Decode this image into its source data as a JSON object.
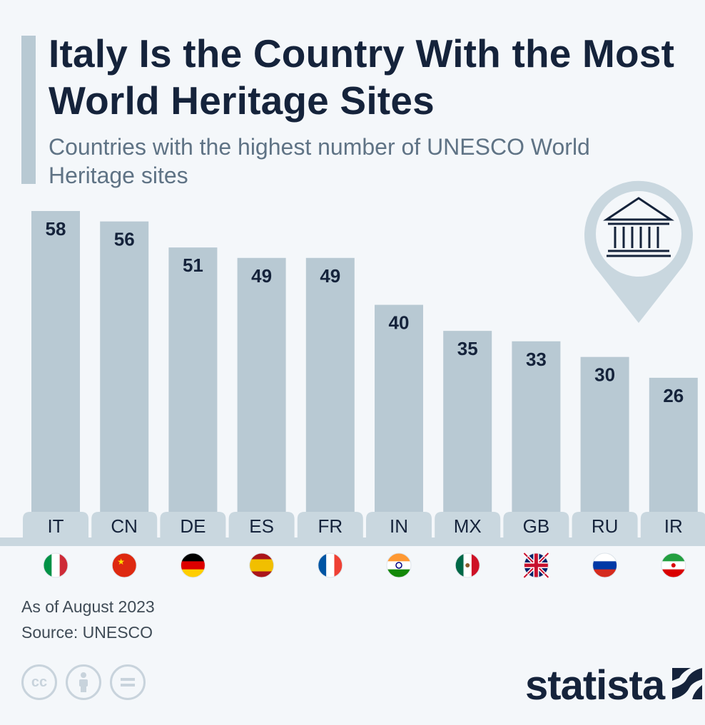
{
  "title": "Italy Is the Country With the Most World Heritage Sites",
  "subtitle": "Countries with the highest number of UNESCO World Heritage sites",
  "note": "As of August 2023",
  "source": "Source: UNESCO",
  "brand": "statista",
  "license_icons": [
    "cc-icon",
    "attribution-icon",
    "no-derivatives-icon"
  ],
  "colors": {
    "bar": "#b8c9d3",
    "label_bg": "#c9d7df",
    "text": "#15233b",
    "baseline": "#c9d7df"
  },
  "chart_data": {
    "type": "bar",
    "categories": [
      "IT",
      "CN",
      "DE",
      "ES",
      "FR",
      "IN",
      "MX",
      "GB",
      "RU",
      "IR"
    ],
    "values": [
      58,
      56,
      51,
      49,
      49,
      40,
      35,
      33,
      30,
      26
    ],
    "title": "Italy Is the Country With the Most World Heritage Sites",
    "subtitle": "Countries with the highest number of UNESCO World Heritage sites",
    "xlabel": "",
    "ylabel": "",
    "ylim": [
      0,
      58
    ],
    "grid": false,
    "data_labels": true,
    "icon": "monument-pin-icon"
  }
}
